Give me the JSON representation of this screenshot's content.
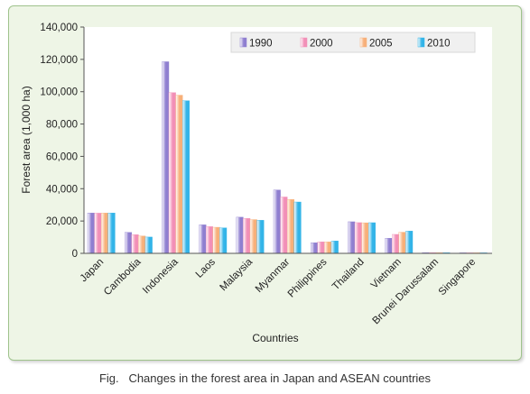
{
  "caption": "Fig.   Changes in the forest area in Japan and ASEAN countries",
  "chart_data": {
    "type": "bar",
    "xlabel": "Countries",
    "ylabel": "Forest area (1,000 ha)",
    "ylim": [
      0,
      140000
    ],
    "yticks": [
      "0",
      "20,000",
      "40,000",
      "60,000",
      "80,000",
      "100,000",
      "120,000",
      "140,000"
    ],
    "grid": false,
    "legend_position": "top-right",
    "categories": [
      "Japan",
      "Cambodia",
      "Indonesia",
      "Laos",
      "Malaysia",
      "Myanmar",
      "Philippines",
      "Thailand",
      "Vietnam",
      "Brunei Darussalam",
      "Singapore"
    ],
    "series": [
      {
        "name": "1990",
        "color": "#8f7fd0",
        "values": [
          24950,
          12944,
          118545,
          17645,
          22376,
          39218,
          6570,
          19549,
          9363,
          413,
          2
        ]
      },
      {
        "name": "2000",
        "color": "#f28fb7",
        "values": [
          24876,
          11546,
          99409,
          16532,
          21591,
          34868,
          7117,
          19004,
          11725,
          397,
          2
        ]
      },
      {
        "name": "2005",
        "color": "#f7b07a",
        "values": [
          24935,
          10731,
          97857,
          16142,
          20890,
          33321,
          7074,
          18898,
          13077,
          389,
          2
        ]
      },
      {
        "name": "2010",
        "color": "#33b4e8",
        "values": [
          24979,
          10094,
          94432,
          15751,
          20456,
          31773,
          7665,
          18972,
          13797,
          380,
          2
        ]
      }
    ]
  }
}
